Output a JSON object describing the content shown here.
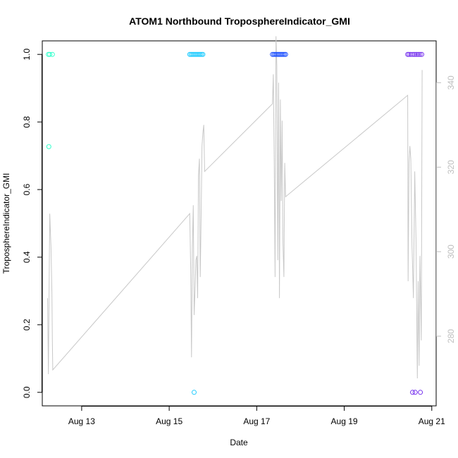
{
  "chart_data": {
    "type": "scatter",
    "title": "ATOM1 Northbound TroposphereIndicator_GMI",
    "xlabel": "Date",
    "ylabel": "TroposphereIndicator_GMI",
    "xlim": [
      12.1,
      21.1
    ],
    "ylim": [
      -0.04,
      1.04
    ],
    "x_ticks": [
      {
        "value": 13,
        "label": "Aug 13"
      },
      {
        "value": 15,
        "label": "Aug 15"
      },
      {
        "value": 17,
        "label": "Aug 17"
      },
      {
        "value": 19,
        "label": "Aug 19"
      },
      {
        "value": 21,
        "label": "Aug 21"
      }
    ],
    "y_ticks": [
      {
        "value": 0.0,
        "label": "0.0"
      },
      {
        "value": 0.2,
        "label": "0.2"
      },
      {
        "value": 0.4,
        "label": "0.4"
      },
      {
        "value": 0.6,
        "label": "0.6"
      },
      {
        "value": 0.8,
        "label": "0.8"
      },
      {
        "value": 1.0,
        "label": "1.0"
      }
    ],
    "y2lim": [
      263.5,
      349.9
    ],
    "y2_ticks": [
      {
        "value": 280,
        "label": "280"
      },
      {
        "value": 300,
        "label": "300"
      },
      {
        "value": 320,
        "label": "320"
      },
      {
        "value": 340,
        "label": "340"
      }
    ],
    "grid": false,
    "colors": {
      "line": "#c8c8c8",
      "segment1": "#33ffcc",
      "segment2": "#22ccff",
      "segment3": "#2255ff",
      "segment4": "#7733ee"
    },
    "series": [
      {
        "color": "#33ffcc",
        "points": [
          [
            12.24,
            1.0
          ],
          [
            12.27,
            1.0
          ],
          [
            12.33,
            1.0
          ],
          [
            12.25,
            0.727
          ]
        ]
      },
      {
        "color": "#22ccff",
        "points": [
          [
            15.47,
            1.0
          ],
          [
            15.5,
            1.0
          ],
          [
            15.53,
            1.0
          ],
          [
            15.56,
            1.0
          ],
          [
            15.59,
            1.0
          ],
          [
            15.62,
            1.0
          ],
          [
            15.65,
            1.0
          ],
          [
            15.68,
            1.0
          ],
          [
            15.71,
            1.0
          ],
          [
            15.74,
            1.0
          ],
          [
            15.77,
            1.0
          ],
          [
            15.57,
            0.0
          ]
        ]
      },
      {
        "color": "#2255ff",
        "points": [
          [
            17.36,
            1.0
          ],
          [
            17.39,
            1.0
          ],
          [
            17.42,
            1.0
          ],
          [
            17.45,
            1.0
          ],
          [
            17.48,
            1.0
          ],
          [
            17.51,
            1.0
          ],
          [
            17.54,
            1.0
          ],
          [
            17.57,
            1.0
          ],
          [
            17.6,
            1.0
          ],
          [
            17.63,
            1.0
          ],
          [
            17.66,
            1.0
          ]
        ]
      },
      {
        "color": "#7733ee",
        "points": [
          [
            20.45,
            1.0
          ],
          [
            20.48,
            1.0
          ],
          [
            20.52,
            1.0
          ],
          [
            20.57,
            1.0
          ],
          [
            20.61,
            1.0
          ],
          [
            20.65,
            1.0
          ],
          [
            20.69,
            1.0
          ],
          [
            20.73,
            1.0
          ],
          [
            20.77,
            1.0
          ],
          [
            20.56,
            0.0
          ],
          [
            20.62,
            0.0
          ],
          [
            20.74,
            0.0
          ]
        ]
      }
    ],
    "line_series": {
      "axis": "right",
      "points": [
        [
          12.22,
          289
        ],
        [
          12.24,
          271
        ],
        [
          12.27,
          309
        ],
        [
          12.3,
          301
        ],
        [
          12.32,
          290
        ],
        [
          12.33,
          279
        ],
        [
          12.34,
          272
        ],
        [
          15.47,
          309
        ],
        [
          15.49,
          296
        ],
        [
          15.51,
          275
        ],
        [
          15.53,
          301
        ],
        [
          15.55,
          311
        ],
        [
          15.57,
          285
        ],
        [
          15.59,
          291
        ],
        [
          15.61,
          298
        ],
        [
          15.63,
          299
        ],
        [
          15.65,
          289
        ],
        [
          15.67,
          318
        ],
        [
          15.69,
          322
        ],
        [
          15.71,
          294
        ],
        [
          15.73,
          309
        ],
        [
          15.75,
          325
        ],
        [
          15.77,
          328
        ],
        [
          15.79,
          330
        ],
        [
          15.81,
          319
        ],
        [
          17.36,
          335
        ],
        [
          17.38,
          342
        ],
        [
          17.4,
          321
        ],
        [
          17.42,
          294
        ],
        [
          17.44,
          351
        ],
        [
          17.46,
          344
        ],
        [
          17.48,
          298
        ],
        [
          17.5,
          340
        ],
        [
          17.52,
          289
        ],
        [
          17.54,
          336
        ],
        [
          17.56,
          312
        ],
        [
          17.58,
          331
        ],
        [
          17.6,
          302
        ],
        [
          17.62,
          294
        ],
        [
          17.64,
          321
        ],
        [
          17.66,
          313
        ],
        [
          20.45,
          337
        ],
        [
          20.46,
          293
        ],
        [
          20.48,
          321
        ],
        [
          20.5,
          325
        ],
        [
          20.52,
          322
        ],
        [
          20.55,
          301
        ],
        [
          20.58,
          289
        ],
        [
          20.61,
          319
        ],
        [
          20.64,
          303
        ],
        [
          20.67,
          270
        ],
        [
          20.69,
          293
        ],
        [
          20.71,
          273
        ],
        [
          20.73,
          299
        ],
        [
          20.76,
          279
        ],
        [
          20.78,
          343
        ]
      ]
    }
  }
}
